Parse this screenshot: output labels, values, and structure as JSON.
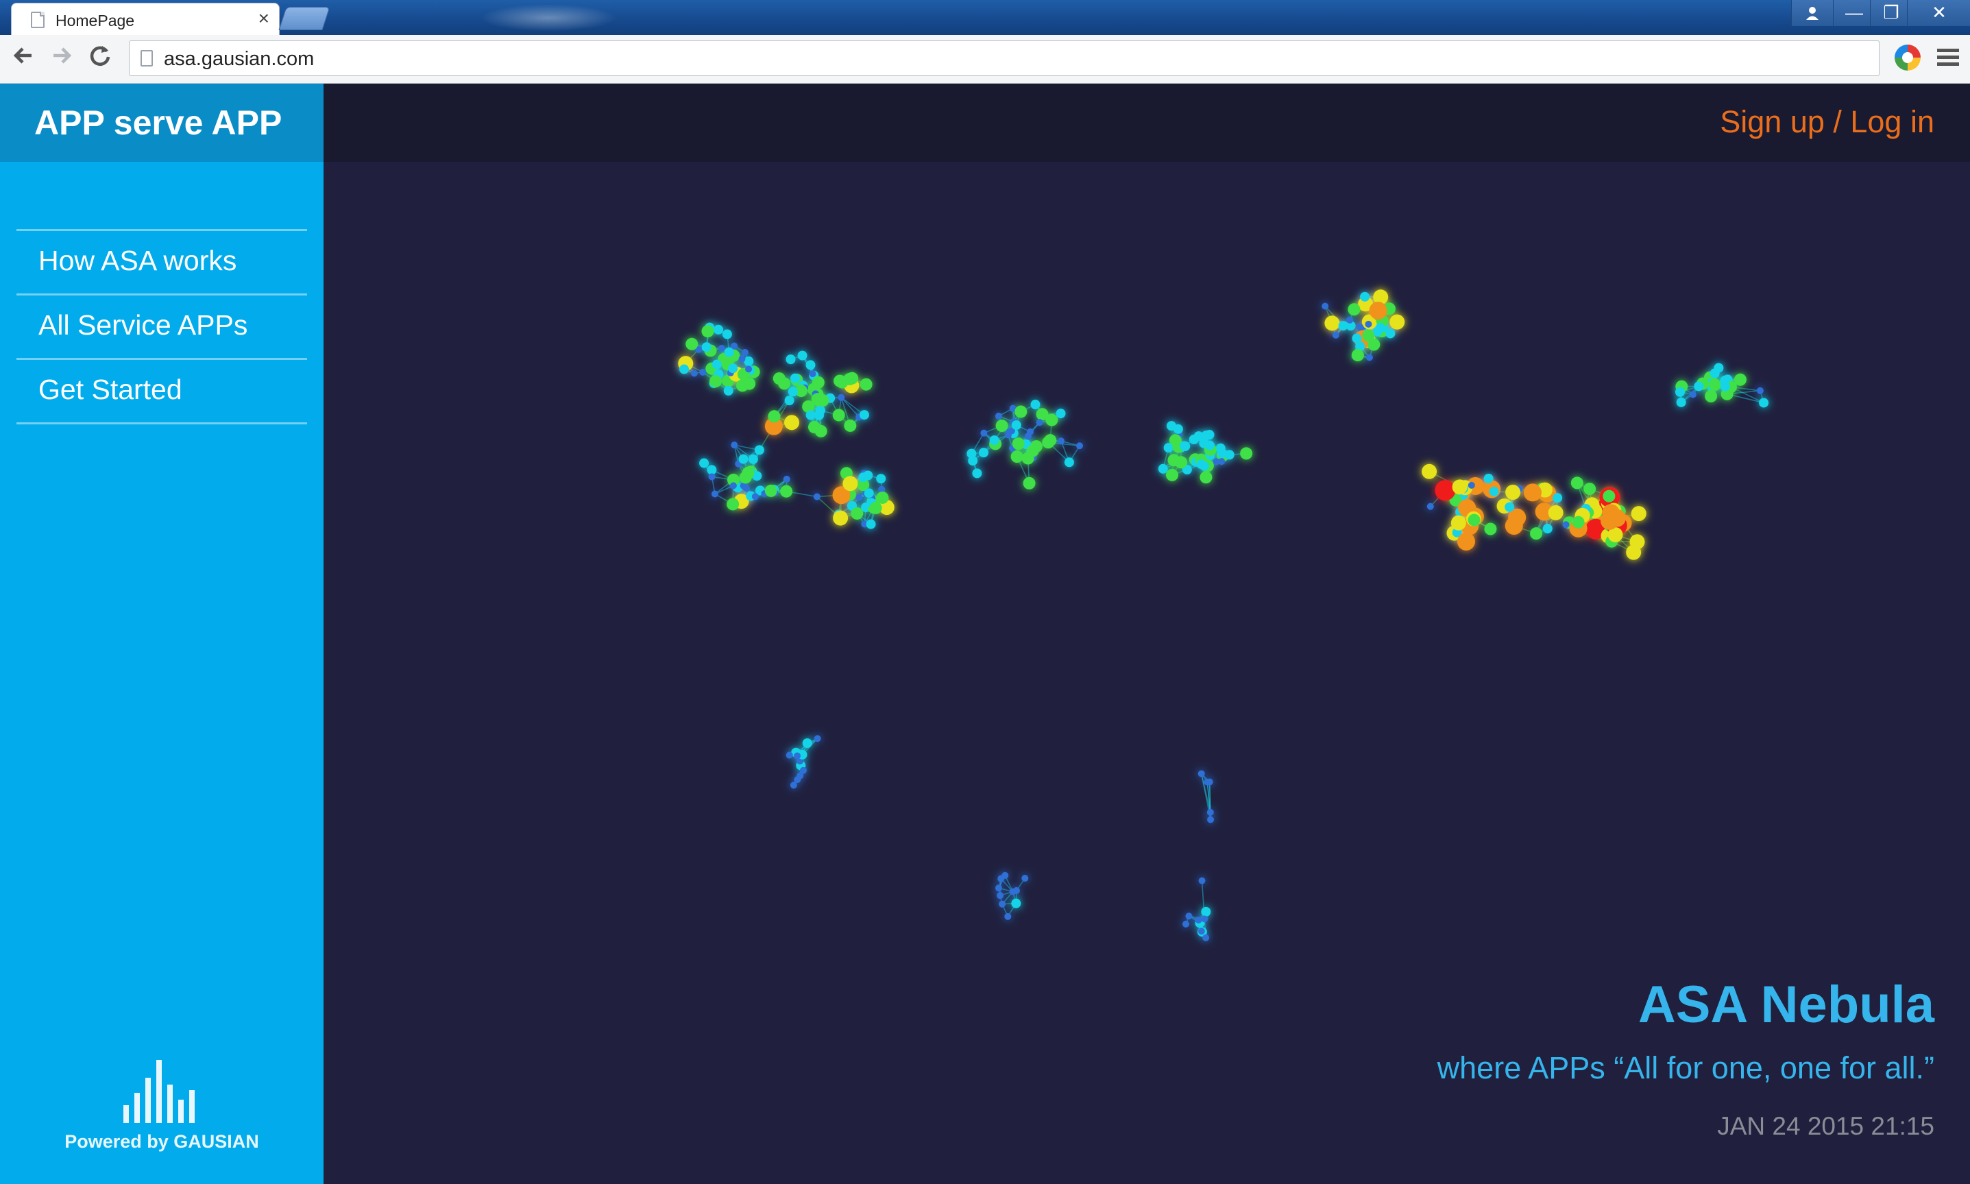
{
  "browser": {
    "tab_title": "HomePage",
    "tab_close": "×",
    "url": "asa.gausian.com",
    "icons": {
      "back": "arrow-left-icon",
      "forward": "arrow-right-icon",
      "reload": "reload-icon",
      "extension": "extension-icon",
      "menu": "hamburger-menu-icon"
    },
    "window_controls": {
      "minimize": "—",
      "maximize": "❐",
      "close": "✕"
    }
  },
  "sidebar": {
    "brand": "APP serve APP",
    "nav": [
      {
        "label": "How ASA works"
      },
      {
        "label": "All Service APPs"
      },
      {
        "label": "Get Started"
      }
    ],
    "powered_by": "Powered by GAUSIAN"
  },
  "header": {
    "auth_link": "Sign up / Log in"
  },
  "hero": {
    "title": "ASA Nebula",
    "subtitle": "where APPs “All for one, one for all.”",
    "timestamp": "JAN 24 2015 21:15"
  },
  "colors": {
    "sidebar": "#02acec",
    "brand_bar": "#0a8cc7",
    "main_bg": "#20203e",
    "topbar_bg": "#19192f",
    "auth_link": "#ea6e1b",
    "hero_text": "#36b5ec",
    "timestamp": "#8a8c96",
    "node_heat_scale": [
      "#2f6fd6",
      "#18d4e8",
      "#3fe04a",
      "#e6e21c",
      "#f0921a",
      "#f01e1e"
    ]
  }
}
